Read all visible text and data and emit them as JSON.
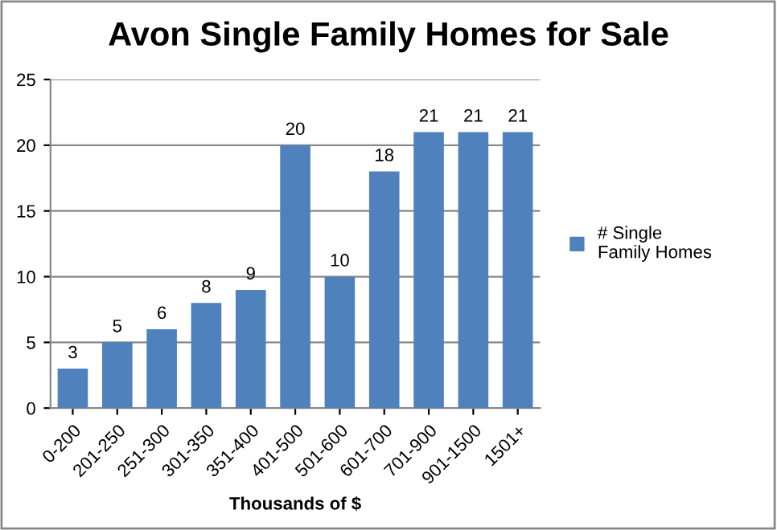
{
  "chart_data": {
    "type": "bar",
    "title": "Avon Single Family Homes for Sale",
    "xlabel": "Thousands of $",
    "categories": [
      "0-200",
      "201-250",
      "251-300",
      "301-350",
      "351-400",
      "401-500",
      "501-600",
      "601-700",
      "701-900",
      "901-1500",
      "1501+"
    ],
    "series": [
      {
        "name": "# Single\nFamily Homes",
        "color": "#4f81bd",
        "values": [
          3,
          5,
          6,
          8,
          9,
          20,
          10,
          18,
          21,
          21,
          21
        ]
      }
    ],
    "ylim": [
      0,
      25
    ],
    "yticks": [
      0,
      5,
      10,
      15,
      20,
      25
    ],
    "grid": "y",
    "legend": "right",
    "data_labels": true
  }
}
